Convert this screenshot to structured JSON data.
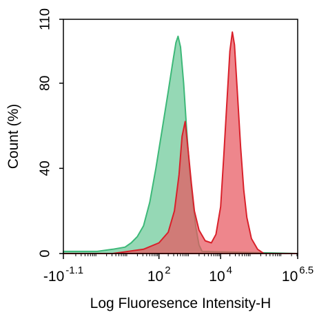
{
  "chart_data": {
    "type": "area",
    "xlabel": "Log Fluoresence Intensity-H",
    "ylabel": "Count  (%)",
    "ylim": [
      0,
      110
    ],
    "y_ticks": [
      {
        "value": 0,
        "label": "0"
      },
      {
        "value": 40,
        "label": "40"
      },
      {
        "value": 80,
        "label": "80"
      },
      {
        "value": 110,
        "label": "110"
      }
    ],
    "x_scale": "log",
    "xlim_log10": [
      -1.1,
      6.5
    ],
    "x_ticks": [
      {
        "base": "-10",
        "exp": "-1.1"
      },
      {
        "base": "10",
        "exp": "2"
      },
      {
        "base": "10",
        "exp": "4"
      },
      {
        "base": "10",
        "exp": "6.5"
      }
    ],
    "grid": false,
    "legend": "none",
    "series": [
      {
        "color": "#3cb878",
        "fill": "#6cc999",
        "points": [
          [
            -1.1,
            1
          ],
          [
            0.0,
            1
          ],
          [
            0.5,
            2
          ],
          [
            0.9,
            3
          ],
          [
            1.1,
            5
          ],
          [
            1.3,
            8
          ],
          [
            1.5,
            13
          ],
          [
            1.7,
            24
          ],
          [
            1.9,
            40
          ],
          [
            2.1,
            58
          ],
          [
            2.3,
            76
          ],
          [
            2.45,
            90
          ],
          [
            2.55,
            99
          ],
          [
            2.62,
            102
          ],
          [
            2.7,
            97
          ],
          [
            2.8,
            80
          ],
          [
            2.9,
            58
          ],
          [
            3.0,
            38
          ],
          [
            3.1,
            24
          ],
          [
            3.2,
            12
          ],
          [
            3.3,
            4
          ],
          [
            3.4,
            1
          ],
          [
            6.5,
            0
          ]
        ]
      },
      {
        "color": "#d9202a",
        "fill": "#e8585f",
        "points": [
          [
            -1.1,
            0
          ],
          [
            0.5,
            0
          ],
          [
            1.0,
            1
          ],
          [
            1.5,
            2
          ],
          [
            2.0,
            5
          ],
          [
            2.3,
            10
          ],
          [
            2.5,
            20
          ],
          [
            2.65,
            37
          ],
          [
            2.75,
            55
          ],
          [
            2.85,
            62
          ],
          [
            2.95,
            48
          ],
          [
            3.05,
            33
          ],
          [
            3.15,
            20
          ],
          [
            3.3,
            11
          ],
          [
            3.5,
            6
          ],
          [
            3.7,
            5
          ],
          [
            3.85,
            9
          ],
          [
            4.0,
            22
          ],
          [
            4.1,
            45
          ],
          [
            4.2,
            70
          ],
          [
            4.3,
            95
          ],
          [
            4.38,
            104
          ],
          [
            4.45,
            98
          ],
          [
            4.55,
            74
          ],
          [
            4.65,
            50
          ],
          [
            4.75,
            30
          ],
          [
            4.85,
            17
          ],
          [
            5.0,
            7
          ],
          [
            5.2,
            2
          ],
          [
            5.4,
            0
          ],
          [
            6.5,
            0
          ]
        ]
      }
    ]
  }
}
